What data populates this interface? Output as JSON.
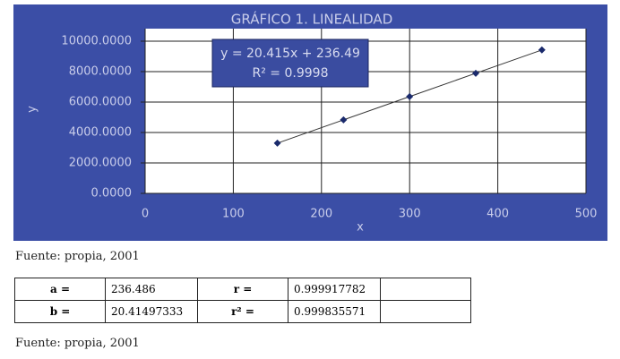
{
  "chart_data": {
    "type": "scatter",
    "title": "GRÁFICO 1. LINEALIDAD",
    "x_label": "x",
    "y_label": "y",
    "annotations": [
      "y = 20.415x + 236.49",
      "R² = 0.9998"
    ],
    "series": [
      {
        "name": "y",
        "color": "#1a2a6c",
        "x": [
          150,
          225,
          300,
          375,
          450
        ],
        "values": [
          3299,
          4830,
          6361,
          7892,
          9423
        ]
      }
    ],
    "xlim": [
      0,
      500
    ],
    "xticks": [
      0,
      100,
      200,
      300,
      400,
      500
    ],
    "ylim": [
      0,
      10000
    ],
    "yticks": [
      {
        "value": 0,
        "label": "0.0000"
      },
      {
        "value": 2000,
        "label": "2000.0000"
      },
      {
        "value": 4000,
        "label": "4000.0000"
      },
      {
        "value": 6000,
        "label": "6000.0000"
      },
      {
        "value": 8000,
        "label": "8000.0000"
      },
      {
        "value": 10000,
        "label": "10000.0000"
      }
    ],
    "grid": true
  },
  "captions": [
    "Fuente: propia, 2001",
    "Fuente: propia, 2001"
  ],
  "table": {
    "rows": [
      [
        "a =",
        "236.486",
        "r =",
        "0.999917782"
      ],
      [
        "b =",
        "20.41497333",
        "r² =",
        "0.999835571"
      ]
    ]
  }
}
